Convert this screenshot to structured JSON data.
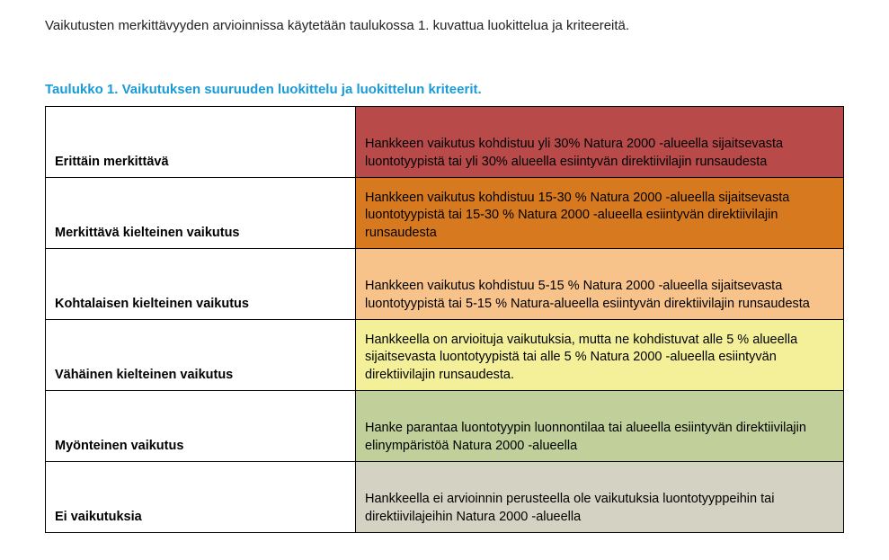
{
  "intro_text": "Vaikutusten merkittävyyden arvioinnissa käytetään taulukossa 1. kuvattua luokittelua ja kriteereitä.",
  "caption_text": "Taulukko 1. Vaikutuksen suuruuden luokittelu ja luokittelun kriteerit.",
  "colors": {
    "text": "#222222",
    "caption": "#1a9bd7",
    "border": "#000000",
    "row_bg": [
      "#b84a4a",
      "#d77a1f",
      "#f7c38b",
      "#f4f09a",
      "#c1cf9a",
      "#d4d3c3"
    ]
  },
  "rows": [
    {
      "label": "Erittäin merkittävä",
      "desc": "Hankkeen vaikutus kohdistuu yli 30% Natura 2000 -alueella sijaitsevasta luontotyypistä tai yli 30% alueella esiintyvän direktiivilajin runsaudesta"
    },
    {
      "label": "Merkittävä kielteinen vaikutus",
      "desc": "Hankkeen vaikutus kohdistuu 15-30 % Natura 2000 -alueella sijaitsevasta luontotyypistä tai 15-30 % Natura 2000 -alueella esiintyvän direktiivilajin runsaudesta"
    },
    {
      "label": "Kohtalaisen kielteinen vaikutus",
      "desc": "Hankkeen vaikutus kohdistuu 5-15 % Natura 2000 -alueella sijaitsevasta luontotyypistä tai 5-15 % Natura-alueella esiintyvän direktiivilajin runsaudesta"
    },
    {
      "label": "Vähäinen kielteinen vaikutus",
      "desc": "Hankkeella on arvioituja vaikutuksia, mutta ne kohdistuvat alle 5 % alueella sijaitsevasta luontotyypistä tai alle 5 % Natura 2000 -alueella esiintyvän direktiivilajin runsaudesta."
    },
    {
      "label": "Myönteinen vaikutus",
      "desc": "Hanke parantaa luontotyypin luonnontilaa tai alueella esiintyvän direktiivilajin elinympäristöä Natura 2000 -alueella"
    },
    {
      "label": "Ei vaikutuksia",
      "desc": "Hankkeella ei arvioinnin perusteella ole vaikutuksia luontotyyppeihin tai direktiivilajeihin Natura 2000 -alueella"
    }
  ]
}
